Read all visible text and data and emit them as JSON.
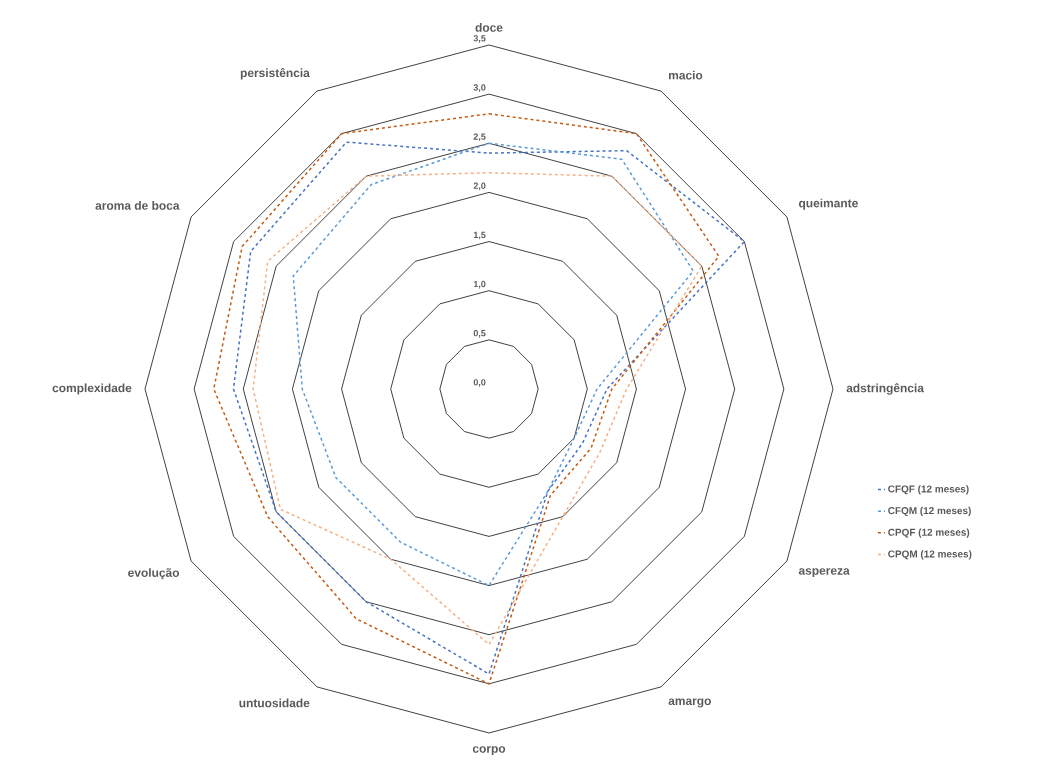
{
  "chart_data": {
    "type": "radar",
    "categories": [
      "doce",
      "macio",
      "queimante",
      "adstringência",
      "aspereza",
      "amargo",
      "corpo",
      "untuosidade",
      "evolução",
      "complexidade",
      "aroma de boca",
      "persistência"
    ],
    "series": [
      {
        "name": "CFQF (12 meses)",
        "color": "#4472c4",
        "values": [
          2.4,
          2.8,
          3.0,
          1.2,
          1.1,
          1.2,
          2.9,
          2.5,
          2.5,
          2.6,
          2.8,
          2.9
        ]
      },
      {
        "name": "CFQM (12 meses)",
        "color": "#5b9bd5",
        "values": [
          2.5,
          2.7,
          2.4,
          1.1,
          1.0,
          1.2,
          2.0,
          1.8,
          1.8,
          1.9,
          2.3,
          2.4
        ]
      },
      {
        "name": "CPQF (12 meses)",
        "color": "#c55a11",
        "values": [
          2.8,
          3.0,
          2.7,
          1.25,
          1.2,
          1.25,
          3.0,
          2.7,
          2.6,
          2.8,
          2.9,
          3.0
        ]
      },
      {
        "name": "CPQM (12 meses)",
        "color": "#f4b183",
        "values": [
          2.2,
          2.5,
          2.5,
          1.4,
          1.3,
          1.5,
          2.6,
          2.0,
          2.45,
          2.4,
          2.6,
          2.5
        ]
      }
    ],
    "ylim": [
      0,
      3.5
    ],
    "yticks": [
      {
        "value": 0,
        "label": "0,0"
      },
      {
        "value": 0.5,
        "label": "0,5"
      },
      {
        "value": 1,
        "label": "1,0"
      },
      {
        "value": 1.5,
        "label": "1,5"
      },
      {
        "value": 2,
        "label": "2,0"
      },
      {
        "value": 2.5,
        "label": "2,5"
      },
      {
        "value": 3,
        "label": "3,0"
      },
      {
        "value": 3.5,
        "label": "3,5"
      }
    ],
    "grid": true,
    "legend": "right",
    "line_style": "dashed"
  }
}
